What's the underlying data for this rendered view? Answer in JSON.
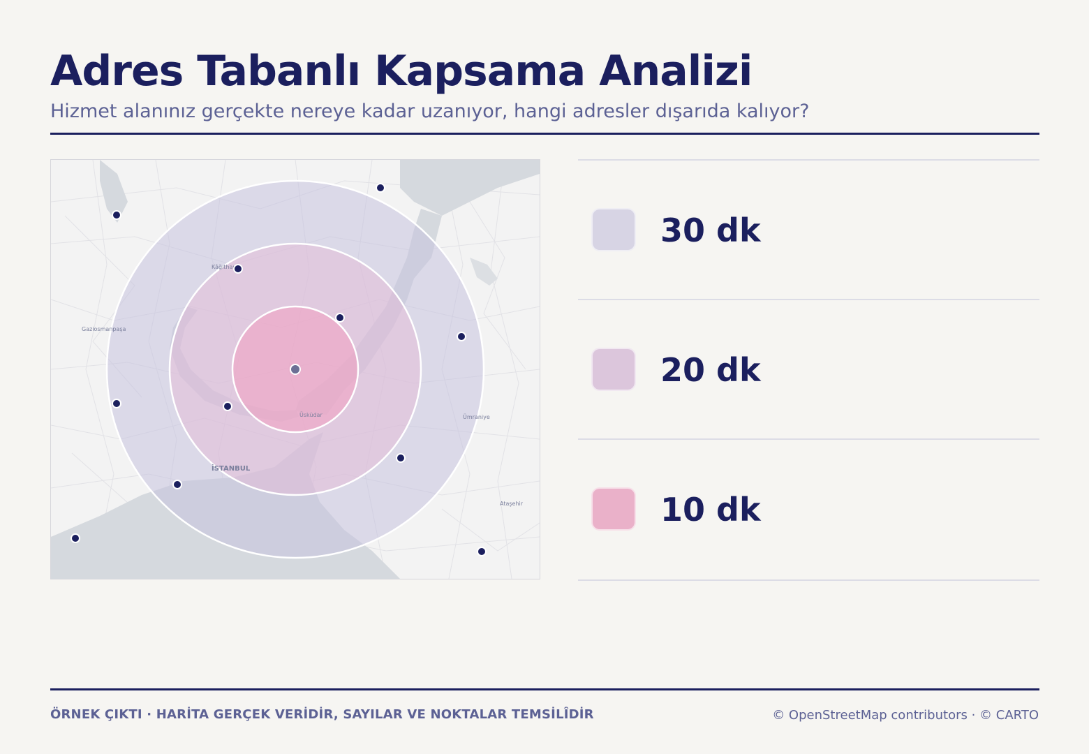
{
  "header": {
    "title": "Adres Tabanlı Kapsama Analizi",
    "subtitle": "Hizmet alanınız gerçekte nereye kadar uzanıyor, hangi adresler dışarıda kalıyor?"
  },
  "map": {
    "place_labels": {
      "kagithane": "Kâğıthane",
      "gaziosmanpasa": "Gaziosmanpaşa",
      "istanbul": "İSTANBUL",
      "uskudar": "Üsküdar",
      "umraniye": "Ümraniye",
      "atasehir": "Ataşehir"
    },
    "colors": {
      "ring_30": "#d7d4e4",
      "ring_20": "#dcc6dc",
      "ring_10": "#eab1c9",
      "address_dot": "#1b1f5e",
      "center_dot": "#6c6f95",
      "water": "#d5d9de",
      "land": "#f3f3f3"
    }
  },
  "legend": {
    "items": [
      {
        "label": "30 dk",
        "color": "#d7d4e4"
      },
      {
        "label": "20 dk",
        "color": "#dcc6dc"
      },
      {
        "label": "10 dk",
        "color": "#eab1c9"
      }
    ]
  },
  "footer": {
    "left": "ÖRNEK ÇIKTI · HARİTA GERÇEK VERİDİR, SAYILAR VE NOKTALAR TEMSİLÎDİR",
    "right": "© OpenStreetMap contributors · © CARTO"
  }
}
